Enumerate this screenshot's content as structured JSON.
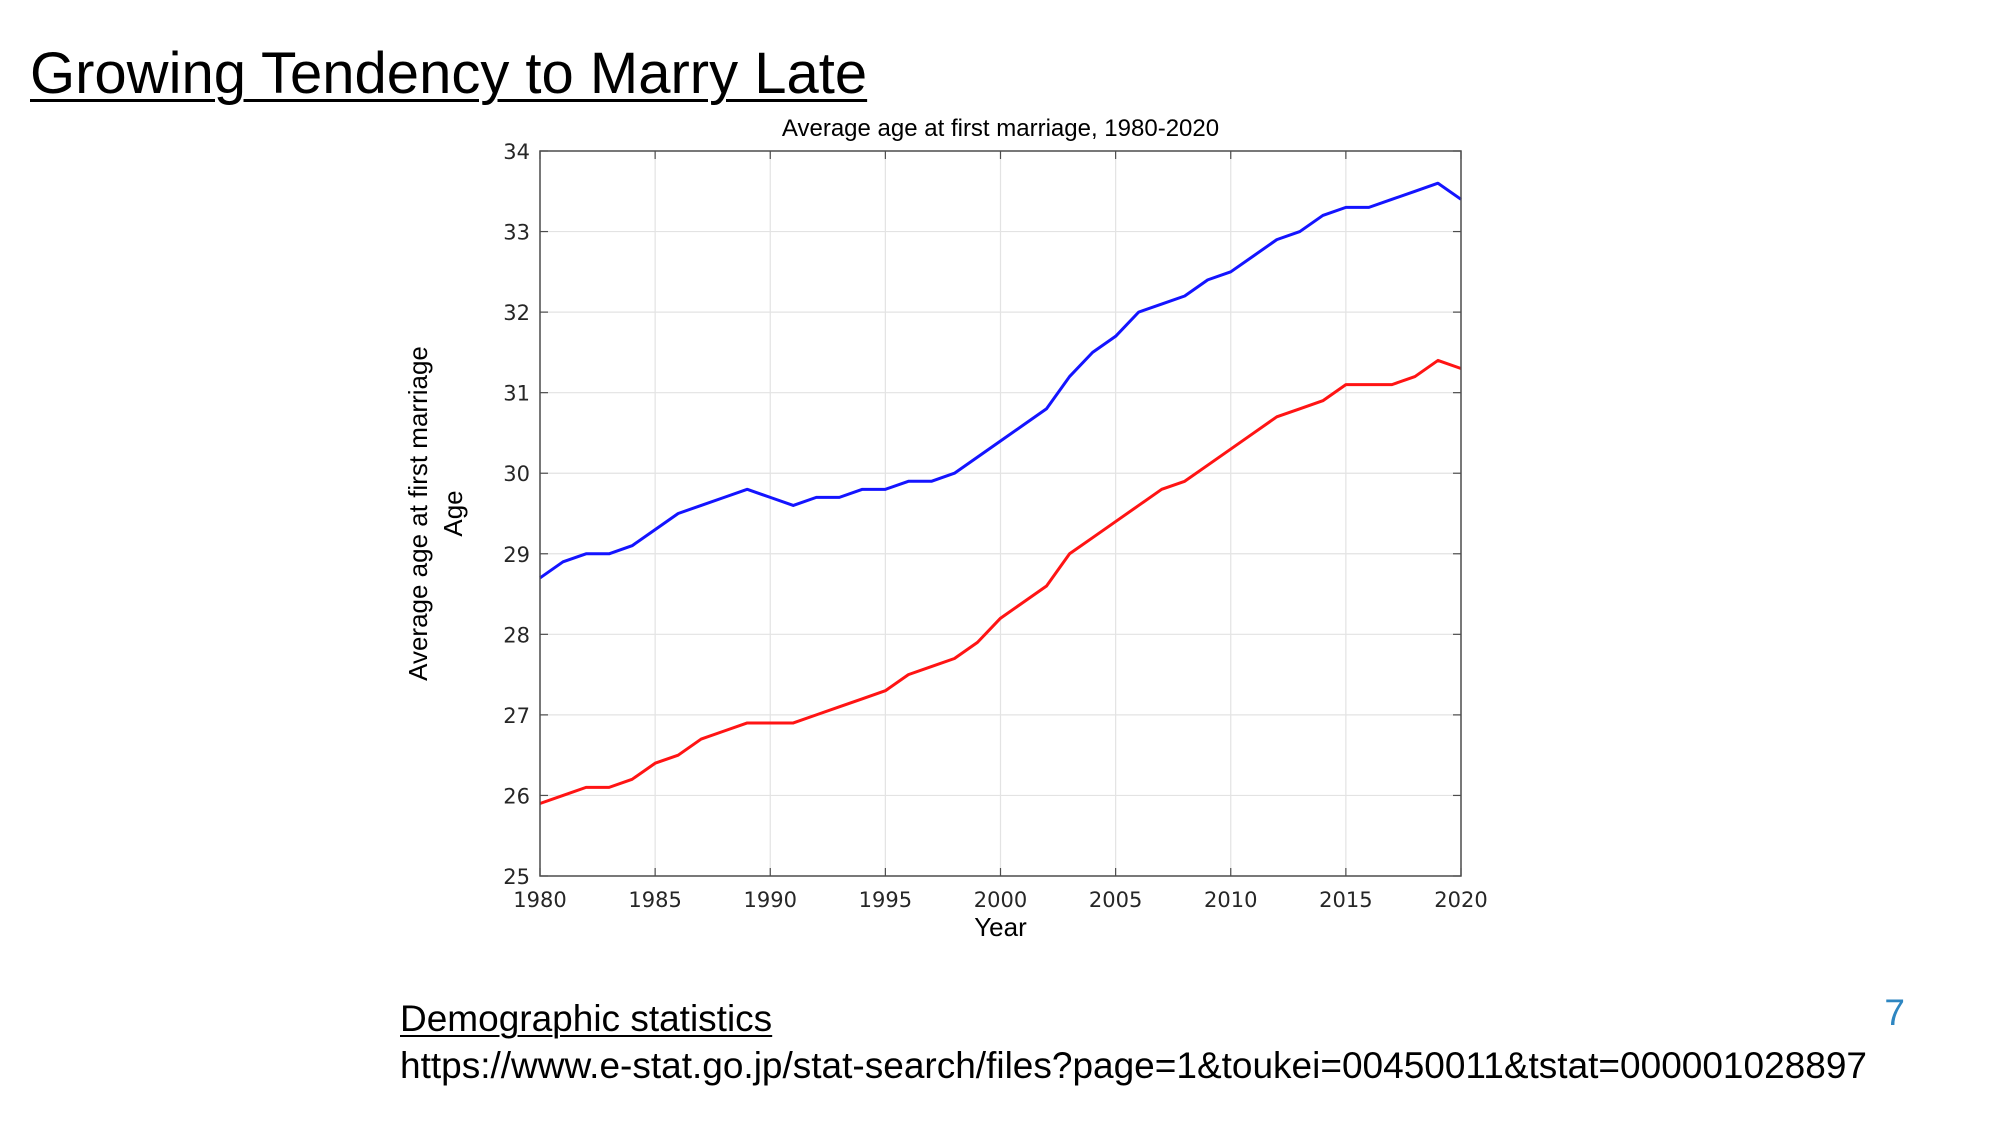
{
  "slide": {
    "title": "Growing Tendency to Marry Late",
    "page_number": "7",
    "source_label": "Demographic statistics",
    "source_url": "https://www.e-stat.go.jp/stat-search/files?page=1&toukei=00450011&tstat=000001028897"
  },
  "chart_data": {
    "type": "line",
    "title": "Average age at first marriage, 1980-2020",
    "xlabel": "Year",
    "ylabel": [
      "Average age at first marriage",
      "Age"
    ],
    "xlim": [
      1980,
      2020
    ],
    "ylim": [
      25,
      34
    ],
    "xticks": [
      1980,
      1985,
      1990,
      1995,
      2000,
      2005,
      2010,
      2015,
      2020
    ],
    "yticks": [
      25,
      26,
      27,
      28,
      29,
      30,
      31,
      32,
      33,
      34
    ],
    "grid": true,
    "legend": "none",
    "x": [
      1980,
      1981,
      1982,
      1983,
      1984,
      1985,
      1986,
      1987,
      1988,
      1989,
      1990,
      1991,
      1992,
      1993,
      1994,
      1995,
      1996,
      1997,
      1998,
      1999,
      2000,
      2001,
      2002,
      2003,
      2004,
      2005,
      2006,
      2007,
      2008,
      2009,
      2010,
      2011,
      2012,
      2013,
      2014,
      2015,
      2016,
      2017,
      2018,
      2019,
      2020
    ],
    "series": [
      {
        "color": "#1414ff",
        "values": [
          28.7,
          28.9,
          29.0,
          29.0,
          29.1,
          29.3,
          29.5,
          29.6,
          29.7,
          29.8,
          29.7,
          29.6,
          29.7,
          29.7,
          29.8,
          29.8,
          29.9,
          29.9,
          30.0,
          30.2,
          30.4,
          30.6,
          30.8,
          31.2,
          31.5,
          31.7,
          32.0,
          32.1,
          32.2,
          32.4,
          32.5,
          32.7,
          32.9,
          33.0,
          33.2,
          33.3,
          33.3,
          33.4,
          33.5,
          33.6,
          33.4
        ]
      },
      {
        "color": "#ff1414",
        "values": [
          25.9,
          26.0,
          26.1,
          26.1,
          26.2,
          26.4,
          26.5,
          26.7,
          26.8,
          26.9,
          26.9,
          26.9,
          27.0,
          27.1,
          27.2,
          27.3,
          27.5,
          27.6,
          27.7,
          27.9,
          28.2,
          28.4,
          28.6,
          29.0,
          29.2,
          29.4,
          29.6,
          29.8,
          29.9,
          30.1,
          30.3,
          30.5,
          30.7,
          30.8,
          30.9,
          31.1,
          31.1,
          31.1,
          31.2,
          31.4,
          31.3
        ]
      }
    ]
  }
}
